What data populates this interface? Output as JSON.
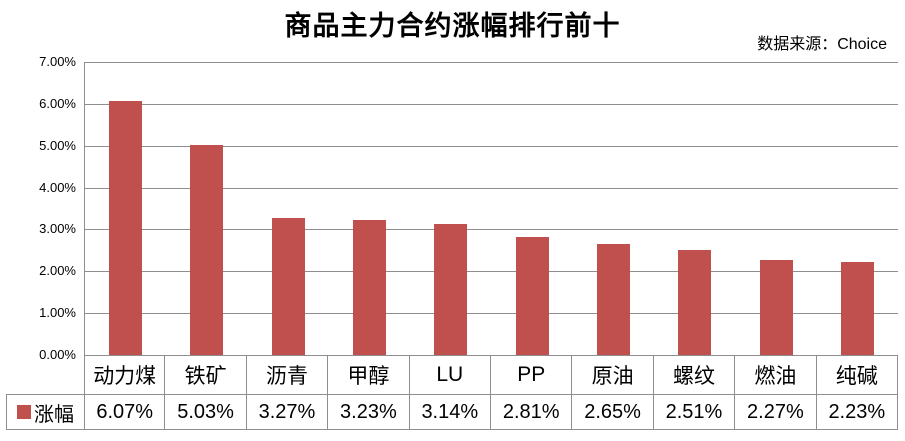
{
  "header": {
    "title": "商品主力合约涨幅排行前十",
    "source": "数据来源：Choice"
  },
  "legend": {
    "label": "涨幅"
  },
  "chart_data": {
    "type": "bar",
    "title": "商品主力合约涨幅排行前十",
    "source_note": "数据来源：Choice",
    "categories": [
      "动力煤",
      "铁矿",
      "沥青",
      "甲醇",
      "LU",
      "PP",
      "原油",
      "螺纹",
      "燃油",
      "纯碱"
    ],
    "series": [
      {
        "name": "涨幅",
        "values": [
          6.07,
          5.03,
          3.27,
          3.23,
          3.14,
          2.81,
          2.65,
          2.51,
          2.27,
          2.23
        ]
      }
    ],
    "value_labels": [
      "6.07%",
      "5.03%",
      "3.27%",
      "3.23%",
      "3.14%",
      "2.81%",
      "2.65%",
      "2.51%",
      "2.27%",
      "2.23%"
    ],
    "unit": "%",
    "xlabel": "",
    "ylabel": "",
    "ylim": [
      0,
      7
    ],
    "y_tick_step": 1,
    "y_tick_labels_top_to_bottom": [
      "7.00%",
      "6.00%",
      "5.00%",
      "4.00%",
      "3.00%",
      "2.00%",
      "1.00%",
      "0.00%"
    ],
    "grid": true,
    "data_table_shown": true,
    "legend_position": "bottom-table-left",
    "colors": {
      "bar": "#C0504D",
      "gridline": "#8E8E8E",
      "text": "#000000",
      "background": "#FFFFFF"
    }
  }
}
